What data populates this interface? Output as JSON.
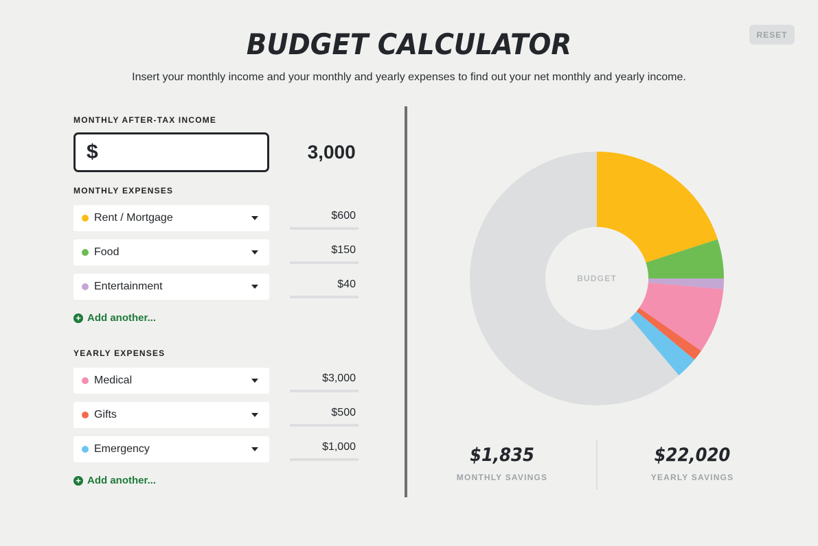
{
  "header": {
    "title": "BUDGET CALCULATOR",
    "subtitle": "Insert your monthly income and your monthly and yearly expenses to find out your net monthly and yearly income.",
    "reset_label": "RESET"
  },
  "income": {
    "label": "MONTHLY AFTER-TAX INCOME",
    "currency": "$",
    "value": "3,000"
  },
  "monthly_expenses": {
    "label": "MONTHLY EXPENSES",
    "items": [
      {
        "name": "Rent / Mortgage",
        "amount": "$600",
        "color": "#fdbb17"
      },
      {
        "name": "Food",
        "amount": "$150",
        "color": "#6dbd53"
      },
      {
        "name": "Entertainment",
        "amount": "$40",
        "color": "#c4a7d3"
      }
    ],
    "add_label": "Add another..."
  },
  "yearly_expenses": {
    "label": "YEARLY EXPENSES",
    "items": [
      {
        "name": "Medical",
        "amount": "$3,000",
        "color": "#f48fb0"
      },
      {
        "name": "Gifts",
        "amount": "$500",
        "color": "#f26b4b"
      },
      {
        "name": "Emergency",
        "amount": "$1,000",
        "color": "#6bc5ef"
      }
    ],
    "add_label": "Add another..."
  },
  "chart_data": {
    "type": "pie",
    "center_label": "BUDGET",
    "remainder_color": "#dcdedf",
    "slices": [
      {
        "name": "Rent / Mortgage",
        "value": 600,
        "color": "#fdbb17"
      },
      {
        "name": "Food",
        "value": 150,
        "color": "#6dbd53"
      },
      {
        "name": "Entertainment",
        "value": 40,
        "color": "#c4a7d3"
      },
      {
        "name": "Medical",
        "value": 250,
        "color": "#f48fb0"
      },
      {
        "name": "Gifts",
        "value": 41.67,
        "color": "#f26b4b"
      },
      {
        "name": "Emergency",
        "value": 83.33,
        "color": "#6bc5ef"
      },
      {
        "name": "Savings",
        "value": 1835,
        "color": "#dcdedf"
      }
    ]
  },
  "savings": {
    "monthly_value": "$1,835",
    "monthly_label": "MONTHLY SAVINGS",
    "yearly_value": "$22,020",
    "yearly_label": "YEARLY SAVINGS"
  }
}
